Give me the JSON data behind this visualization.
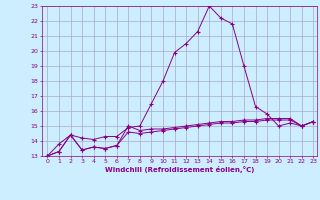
{
  "xlabel": "Windchill (Refroidissement éolien,°C)",
  "bg_color": "#cceeff",
  "grid_color": "#aaaacc",
  "line_color": "#880088",
  "xlim": [
    -0.5,
    23.3
  ],
  "ylim": [
    13,
    23
  ],
  "xticks": [
    0,
    1,
    2,
    3,
    4,
    5,
    6,
    7,
    8,
    9,
    10,
    11,
    12,
    13,
    14,
    15,
    16,
    17,
    18,
    19,
    20,
    21,
    22,
    23
  ],
  "yticks": [
    13,
    14,
    15,
    16,
    17,
    18,
    19,
    20,
    21,
    22,
    23
  ],
  "series1_x": [
    0,
    1,
    2,
    3,
    4,
    5,
    6,
    7,
    8,
    9,
    10,
    11,
    12,
    13,
    14,
    15,
    16,
    17,
    18,
    19,
    20,
    21,
    22,
    23
  ],
  "series1_y": [
    13.0,
    13.8,
    14.4,
    14.2,
    14.1,
    14.3,
    14.3,
    14.9,
    15.0,
    16.5,
    18.0,
    19.9,
    20.5,
    21.3,
    23.0,
    22.2,
    21.8,
    19.0,
    16.3,
    15.8,
    15.0,
    15.2,
    15.0,
    15.3
  ],
  "series2_x": [
    0,
    1,
    2,
    3,
    4,
    5,
    6,
    7,
    8,
    9,
    10,
    11,
    12,
    13,
    14,
    15,
    16,
    17,
    18,
    19,
    20,
    21,
    22,
    23
  ],
  "series2_y": [
    13.0,
    13.3,
    14.4,
    13.4,
    13.6,
    13.5,
    13.7,
    15.0,
    14.7,
    14.8,
    14.8,
    14.9,
    15.0,
    15.1,
    15.2,
    15.3,
    15.3,
    15.4,
    15.4,
    15.5,
    15.5,
    15.5,
    15.0,
    15.3
  ],
  "series3_x": [
    0,
    1,
    2,
    3,
    4,
    5,
    6,
    7,
    8,
    9,
    10,
    11,
    12,
    13,
    14,
    15,
    16,
    17,
    18,
    19,
    20,
    21,
    22,
    23
  ],
  "series3_y": [
    13.0,
    13.3,
    14.4,
    13.4,
    13.6,
    13.5,
    13.7,
    14.6,
    14.5,
    14.6,
    14.7,
    14.8,
    14.9,
    15.0,
    15.1,
    15.2,
    15.2,
    15.3,
    15.3,
    15.4,
    15.4,
    15.4,
    15.0,
    15.3
  ]
}
